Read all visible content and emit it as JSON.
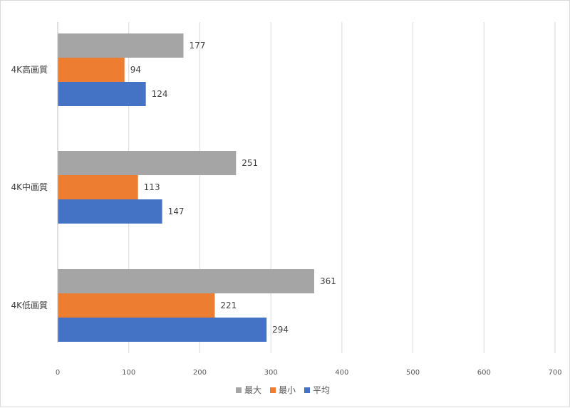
{
  "chart_data": {
    "type": "bar",
    "orientation": "horizontal",
    "title": "",
    "xlabel": "",
    "ylabel": "",
    "categories": [
      "4K高画質",
      "4K中画質",
      "4K低画質"
    ],
    "series": [
      {
        "name": "最大",
        "color": "#a5a5a5",
        "values": [
          177,
          251,
          361
        ]
      },
      {
        "name": "最小",
        "color": "#ed7d31",
        "values": [
          94,
          113,
          221
        ]
      },
      {
        "name": "平均",
        "color": "#4472c4",
        "values": [
          124,
          147,
          294
        ]
      }
    ],
    "xlim": [
      0,
      700
    ],
    "xticks": [
      "0",
      "100",
      "200",
      "300",
      "400",
      "500",
      "600",
      "700"
    ],
    "grid": true,
    "legend": "bottom"
  }
}
